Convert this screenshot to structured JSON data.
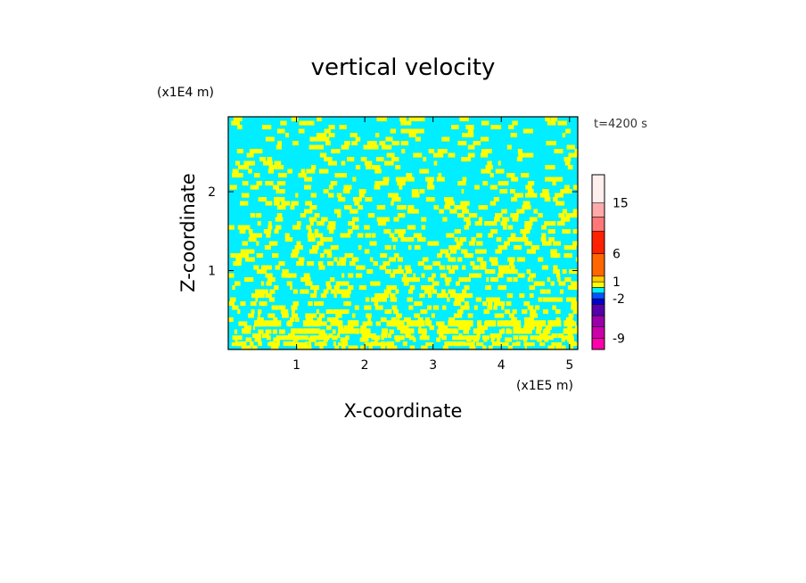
{
  "chart_data": {
    "type": "heatmap",
    "title": "vertical velocity",
    "xlabel": "X-coordinate",
    "ylabel": "Z-coordinate",
    "x_unit": "(x1E5 m)",
    "y_unit": "(x1E4 m)",
    "time_label": "t=4200 s",
    "xlim": [
      0,
      5.12
    ],
    "ylim": [
      0,
      2.95
    ],
    "x_ticks": [
      1,
      2,
      3,
      4,
      5
    ],
    "x_tick_labels": [
      "1",
      "2",
      "3",
      "4",
      "5"
    ],
    "y_ticks": [
      1,
      2
    ],
    "y_tick_labels": [
      "1",
      "2"
    ],
    "field_colors": {
      "negative": "#00eeff",
      "positive": "#ffff00"
    },
    "colorbar": {
      "bins": [
        {
          "from": -11,
          "to": -9,
          "color": "#ff00aa"
        },
        {
          "from": -9,
          "to": -7,
          "color": "#cc00aa"
        },
        {
          "from": -7,
          "to": -5,
          "color": "#9900aa"
        },
        {
          "from": -5,
          "to": -3,
          "color": "#5500aa"
        },
        {
          "from": -3,
          "to": -2,
          "color": "#0000cc"
        },
        {
          "from": -2,
          "to": -1,
          "color": "#0055ff"
        },
        {
          "from": -1,
          "to": 0,
          "color": "#00eeff"
        },
        {
          "from": 0,
          "to": 1,
          "color": "#ffff00"
        },
        {
          "from": 1,
          "to": 2,
          "color": "#ffcc00"
        },
        {
          "from": 2,
          "to": 6,
          "color": "#ff6600"
        },
        {
          "from": 6,
          "to": 10,
          "color": "#ff2200"
        },
        {
          "from": 10,
          "to": 12.5,
          "color": "#ff7777"
        },
        {
          "from": 12.5,
          "to": 15,
          "color": "#ffaaaa"
        },
        {
          "from": 15,
          "to": 20,
          "color": "#ffeeee"
        }
      ],
      "tick_labels": [
        "15",
        "6",
        "1",
        "-2",
        "-9"
      ],
      "tick_values": [
        15,
        6,
        1,
        -2,
        -9
      ]
    }
  }
}
